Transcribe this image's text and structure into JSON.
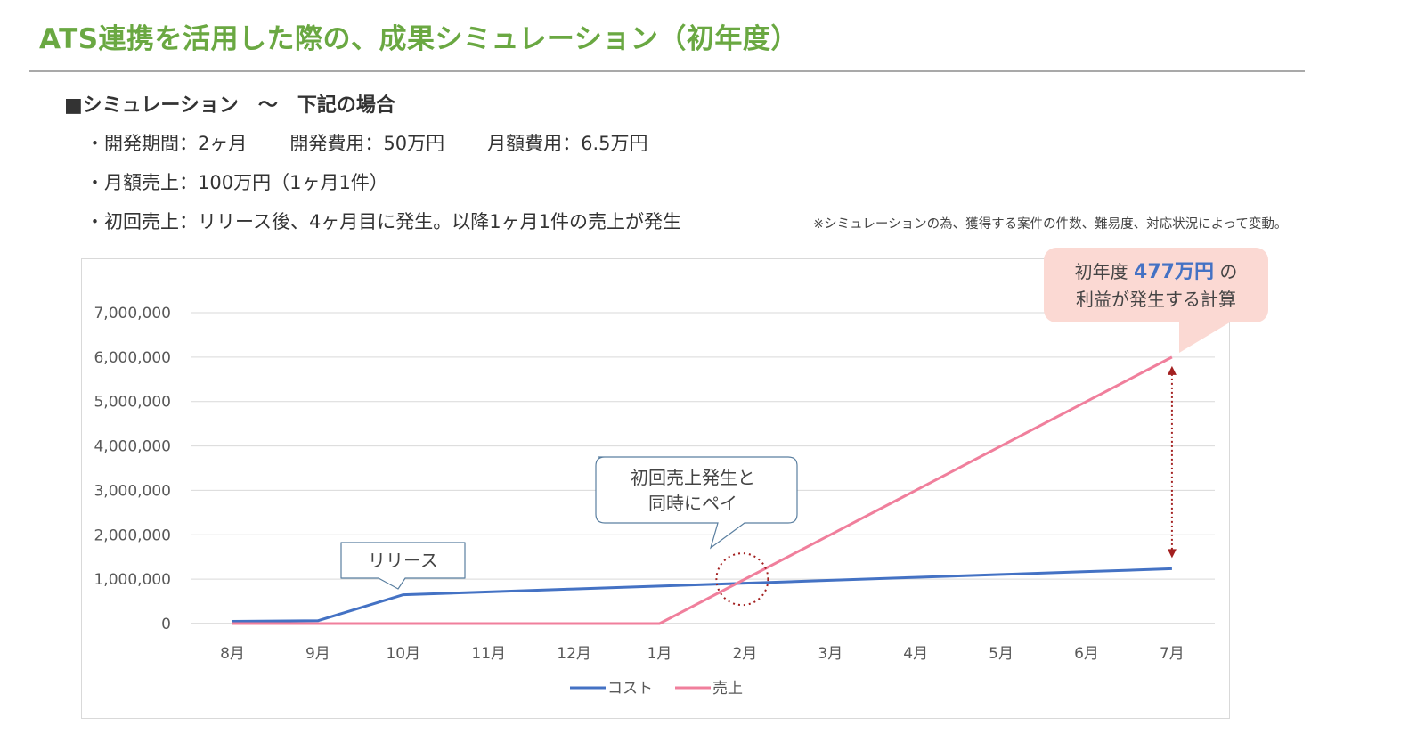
{
  "title": "ATS連携を活用した際の、成果シミュレーション（初年度）",
  "heading": "■シミュレーション　～　下記の場合",
  "bullets": {
    "line1": [
      "・開発期間：2ヶ月",
      "開発費用：50万円",
      "月額費用：6.5万円"
    ],
    "line2": "・月額売上：100万円（1ヶ月1件）",
    "line3": "・初回売上：リリース後、4ヶ月目に発生。以降1ヶ月1件の売上が発生"
  },
  "note": "※シミュレーションの為、獲得する案件の件数、難易度、対応状況によって変動。",
  "profit_callout": {
    "line1_prefix": "初年度 ",
    "line1_highlight": "477万円",
    "line1_suffix": " の",
    "line2": "利益が発生する計算"
  },
  "colors": {
    "title": "#6aa842",
    "cost": "#4472c4",
    "sales": "#f07f9c",
    "callout_bg": "#fbd9d3",
    "arrow": "#a32020"
  },
  "chart_data": {
    "type": "line",
    "categories": [
      "8月",
      "9月",
      "10月",
      "11月",
      "12月",
      "1月",
      "2月",
      "3月",
      "4月",
      "5月",
      "6月",
      "7月"
    ],
    "series": [
      {
        "name": "コスト",
        "color": "#4472c4",
        "values": [
          50000,
          65000,
          650000,
          715000,
          780000,
          845000,
          910000,
          975000,
          1040000,
          1105000,
          1170000,
          1235000
        ]
      },
      {
        "name": "売上",
        "color": "#f07f9c",
        "values": [
          0,
          0,
          0,
          0,
          0,
          0,
          1000000,
          2000000,
          3000000,
          4000000,
          5000000,
          6000000
        ]
      }
    ],
    "ylim": [
      0,
      7000000
    ],
    "yticks": [
      "0",
      "1,000,000",
      "2,000,000",
      "3,000,000",
      "4,000,000",
      "5,000,000",
      "6,000,000",
      "7,000,000"
    ],
    "ytick_values": [
      0,
      1000000,
      2000000,
      3000000,
      4000000,
      5000000,
      6000000,
      7000000
    ],
    "grid": true,
    "legend_position": "bottom",
    "annotations": {
      "release": "リリース",
      "payback_line1": "初回売上発生と",
      "payback_line2": "同時にペイ"
    }
  }
}
